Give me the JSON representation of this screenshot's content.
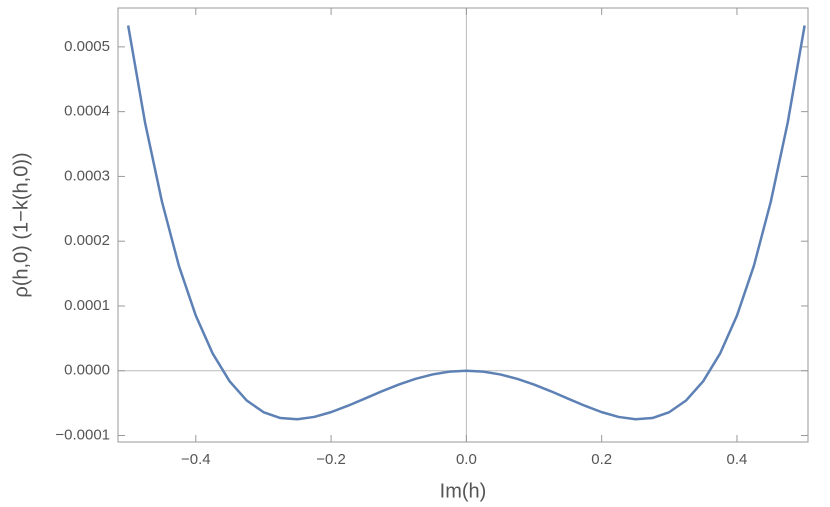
{
  "chart_data": {
    "type": "line",
    "x_label": "Im(h)",
    "y_label": "ρ(h,0) (1−k(h,0))",
    "x": [
      -0.5,
      -0.475,
      -0.45,
      -0.425,
      -0.4,
      -0.375,
      -0.35,
      -0.325,
      -0.3,
      -0.275,
      -0.25,
      -0.225,
      -0.2,
      -0.175,
      -0.15,
      -0.125,
      -0.1,
      -0.075,
      -0.05,
      -0.025,
      0,
      0.025,
      0.05,
      0.075,
      0.1,
      0.125,
      0.15,
      0.175,
      0.2,
      0.225,
      0.25,
      0.275,
      0.3,
      0.325,
      0.35,
      0.375,
      0.4,
      0.425,
      0.45,
      0.475,
      0.5
    ],
    "series": [
      {
        "color": "#5e81b5",
        "values": [
          0.000533,
          0.000383,
          0.000261,
          0.000162,
          8.52e-05,
          2.65e-05,
          -1.63e-05,
          -4.57e-05,
          -6.39e-05,
          -7.3e-05,
          -7.49e-05,
          -7.13e-05,
          -6.39e-05,
          -5.4e-05,
          -4.29e-05,
          -3.17e-05,
          -2.13e-05,
          -1.24e-05,
          -5.7e-06,
          -1.4e-06,
          0,
          -1.4e-06,
          -5.7e-06,
          -1.24e-05,
          -2.13e-05,
          -3.17e-05,
          -4.29e-05,
          -5.4e-05,
          -6.39e-05,
          -7.13e-05,
          -7.49e-05,
          -7.3e-05,
          -6.39e-05,
          -4.57e-05,
          -1.63e-05,
          2.65e-05,
          8.52e-05,
          0.000162,
          0.000261,
          0.000383,
          0.000533
        ]
      }
    ],
    "xlim": [
      -0.515,
      0.505
    ],
    "ylim": [
      -0.00011,
      0.00056
    ],
    "xticks": [
      {
        "value": -0.4,
        "label": "−0.4"
      },
      {
        "value": -0.2,
        "label": "−0.2"
      },
      {
        "value": 0,
        "label": "0.0"
      },
      0.2,
      0.4
    ],
    "yticks": [
      {
        "value": -0.0001,
        "label": "−0.0001"
      },
      {
        "value": 0,
        "label": "0.0000"
      },
      0.0001,
      0.0002,
      0.0003,
      0.0004,
      0.0005
    ],
    "axes_lines": true
  }
}
